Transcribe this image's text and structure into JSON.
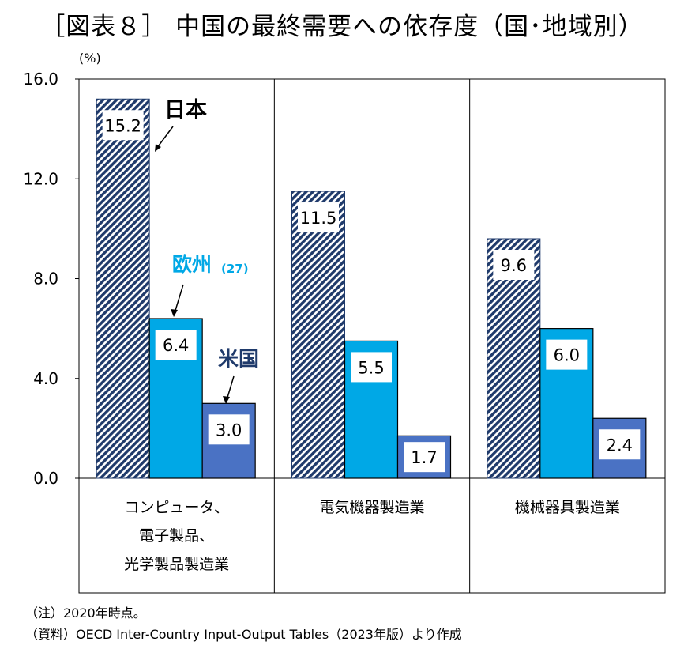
{
  "title": "［図表８］ 中国の最終需要への依存度（国･地域別）",
  "chart_data": {
    "type": "bar",
    "title": "［図表８］ 中国の最終需要への依存度（国･地域別）",
    "ylabel": "(%)",
    "ylim": [
      0,
      16
    ],
    "yticks": [
      "0.0",
      "4.0",
      "8.0",
      "12.0",
      "16.0"
    ],
    "grid": "vertical separators only",
    "categories": [
      [
        "コンピュータ、",
        "電子製品、",
        "光学製品製造業"
      ],
      [
        "電気機器製造業"
      ],
      [
        "機械器具製造業"
      ]
    ],
    "series": [
      {
        "name": "日本",
        "values": [
          15.2,
          11.5,
          9.6
        ],
        "labels": [
          "15.2",
          "11.5",
          "9.6"
        ],
        "color": "#1f3a6b",
        "pattern": "diagonal-hatch"
      },
      {
        "name": "欧州",
        "name_suffix": "(27)",
        "values": [
          6.4,
          5.5,
          6.0
        ],
        "labels": [
          "6.4",
          "5.5",
          "6.0"
        ],
        "color": "#00a8e6"
      },
      {
        "name": "米国",
        "values": [
          3.0,
          1.7,
          2.4
        ],
        "labels": [
          "3.0",
          "1.7",
          "2.4"
        ],
        "color": "#4a72c4"
      }
    ],
    "legend_colors": {
      "日本": "#000000",
      "欧州": "#00a8e6",
      "米国": "#1f3a6b"
    }
  },
  "notes": [
    "（注）2020年時点。",
    "（資料）OECD Inter-Country Input-Output Tables（2023年版）より作成"
  ]
}
